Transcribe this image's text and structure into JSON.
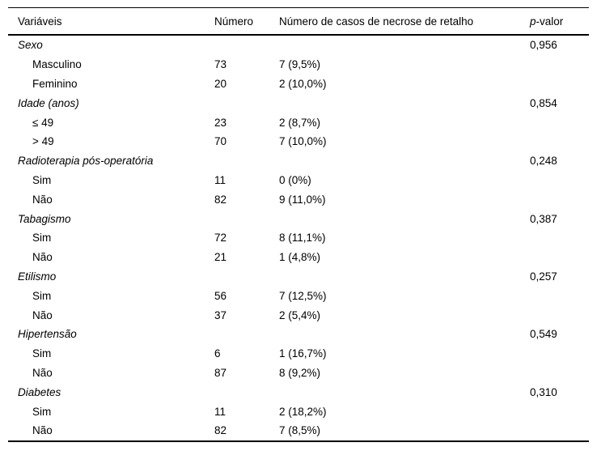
{
  "table": {
    "headers": {
      "variables": "Variáveis",
      "number": "Número",
      "cases": "Número de casos de necrose de retalho",
      "p_italic": "p",
      "p_rest": "-valor"
    },
    "groups": [
      {
        "label": "Sexo",
        "p": "0,956",
        "rows": [
          {
            "label": "Masculino",
            "n": "73",
            "cases": "7 (9,5%)"
          },
          {
            "label": "Feminino",
            "n": "20",
            "cases": "2 (10,0%)"
          }
        ]
      },
      {
        "label": "Idade (anos)",
        "p": "0,854",
        "rows": [
          {
            "label": "≤ 49",
            "n": "23",
            "cases": "2 (8,7%)"
          },
          {
            "label": "> 49",
            "n": "70",
            "cases": "7 (10,0%)"
          }
        ]
      },
      {
        "label": "Radioterapia pós-operatória",
        "p": "0,248",
        "rows": [
          {
            "label": "Sim",
            "n": "11",
            "cases": "0 (0%)"
          },
          {
            "label": "Não",
            "n": "82",
            "cases": "9 (11,0%)"
          }
        ]
      },
      {
        "label": "Tabagismo",
        "p": "0,387",
        "rows": [
          {
            "label": "Sim",
            "n": "72",
            "cases": "8 (11,1%)"
          },
          {
            "label": "Não",
            "n": "21",
            "cases": "1 (4,8%)"
          }
        ]
      },
      {
        "label": "Etilismo",
        "p": "0,257",
        "rows": [
          {
            "label": "Sim",
            "n": "56",
            "cases": "7 (12,5%)"
          },
          {
            "label": "Não",
            "n": "37",
            "cases": "2 (5,4%)"
          }
        ]
      },
      {
        "label": "Hipertensão",
        "p": "0,549",
        "rows": [
          {
            "label": "Sim",
            "n": "6",
            "cases": "1 (16,7%)"
          },
          {
            "label": "Não",
            "n": "87",
            "cases": "8 (9,2%)"
          }
        ]
      },
      {
        "label": "Diabetes",
        "p": "0,310",
        "rows": [
          {
            "label": "Sim",
            "n": "11",
            "cases": "2 (18,2%)"
          },
          {
            "label": "Não",
            "n": "82",
            "cases": "7 (8,5%)"
          }
        ]
      }
    ]
  }
}
